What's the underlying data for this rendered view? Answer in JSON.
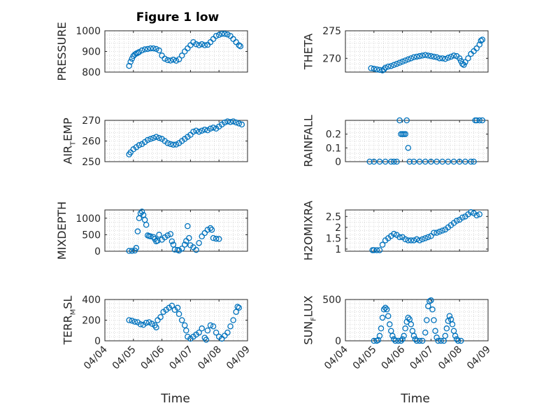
{
  "figure": {
    "title": "Figure 1 low",
    "xlabel": "Time",
    "marker_color": "#0072BD",
    "xtick_labels": [
      "04/04",
      "04/05",
      "04/06",
      "04/07",
      "04/08",
      "04/09"
    ]
  },
  "chart_data": [
    {
      "type": "scatter",
      "ylabel": "PRESSURE",
      "ylim": [
        800,
        1000
      ],
      "yticks": [
        800,
        900,
        1000
      ],
      "xlim": [
        0,
        5
      ],
      "grid": "minor-dotted",
      "points": [
        [
          0.85,
          830
        ],
        [
          0.9,
          850
        ],
        [
          0.95,
          865
        ],
        [
          1.0,
          878
        ],
        [
          1.05,
          885
        ],
        [
          1.1,
          890
        ],
        [
          1.15,
          893
        ],
        [
          1.2,
          897
        ],
        [
          1.3,
          905
        ],
        [
          1.4,
          910
        ],
        [
          1.5,
          912
        ],
        [
          1.6,
          915
        ],
        [
          1.7,
          915
        ],
        [
          1.8,
          912
        ],
        [
          1.9,
          905
        ],
        [
          2.0,
          880
        ],
        [
          2.1,
          865
        ],
        [
          2.2,
          858
        ],
        [
          2.3,
          856
        ],
        [
          2.4,
          860
        ],
        [
          2.5,
          855
        ],
        [
          2.6,
          862
        ],
        [
          2.7,
          880
        ],
        [
          2.8,
          900
        ],
        [
          2.9,
          915
        ],
        [
          3.0,
          930
        ],
        [
          3.1,
          945
        ],
        [
          3.2,
          935
        ],
        [
          3.3,
          930
        ],
        [
          3.4,
          935
        ],
        [
          3.5,
          930
        ],
        [
          3.6,
          932
        ],
        [
          3.7,
          945
        ],
        [
          3.8,
          960
        ],
        [
          3.9,
          975
        ],
        [
          4.0,
          980
        ],
        [
          4.1,
          985
        ],
        [
          4.2,
          985
        ],
        [
          4.3,
          982
        ],
        [
          4.4,
          975
        ],
        [
          4.5,
          960
        ],
        [
          4.6,
          945
        ],
        [
          4.7,
          930
        ],
        [
          4.75,
          925
        ]
      ]
    },
    {
      "type": "scatter",
      "ylabel": "THETA",
      "ylim": [
        267.5,
        275
      ],
      "yticks": [
        270,
        275
      ],
      "xlim": [
        0,
        5
      ],
      "grid": "minor-dotted",
      "points": [
        [
          0.9,
          268.2
        ],
        [
          1.0,
          268.1
        ],
        [
          1.1,
          268.0
        ],
        [
          1.2,
          267.9
        ],
        [
          1.3,
          267.8
        ],
        [
          1.35,
          268.0
        ],
        [
          1.4,
          268.3
        ],
        [
          1.5,
          268.5
        ],
        [
          1.6,
          268.6
        ],
        [
          1.7,
          268.8
        ],
        [
          1.8,
          269.0
        ],
        [
          1.9,
          269.2
        ],
        [
          2.0,
          269.4
        ],
        [
          2.1,
          269.6
        ],
        [
          2.2,
          269.8
        ],
        [
          2.3,
          270.0
        ],
        [
          2.4,
          270.2
        ],
        [
          2.5,
          270.3
        ],
        [
          2.6,
          270.4
        ],
        [
          2.7,
          270.5
        ],
        [
          2.8,
          270.6
        ],
        [
          2.9,
          270.5
        ],
        [
          3.0,
          270.4
        ],
        [
          3.1,
          270.3
        ],
        [
          3.2,
          270.2
        ],
        [
          3.3,
          270.0
        ],
        [
          3.4,
          270.0
        ],
        [
          3.5,
          269.9
        ],
        [
          3.6,
          270.1
        ],
        [
          3.7,
          270.3
        ],
        [
          3.8,
          270.5
        ],
        [
          3.9,
          270.4
        ],
        [
          4.0,
          270.0
        ],
        [
          4.05,
          269.5
        ],
        [
          4.1,
          269.0
        ],
        [
          4.15,
          268.8
        ],
        [
          4.2,
          269.3
        ],
        [
          4.3,
          270.0
        ],
        [
          4.4,
          270.8
        ],
        [
          4.5,
          271.3
        ],
        [
          4.6,
          271.8
        ],
        [
          4.7,
          272.5
        ],
        [
          4.75,
          273.2
        ],
        [
          4.8,
          273.4
        ]
      ]
    },
    {
      "type": "scatter",
      "ylabel": "AIR_TEMP",
      "ylim": [
        250,
        270
      ],
      "yticks": [
        250,
        260,
        270
      ],
      "xlim": [
        0,
        5
      ],
      "grid": "minor-dotted",
      "points": [
        [
          0.85,
          253.5
        ],
        [
          0.9,
          254.5
        ],
        [
          1.0,
          256
        ],
        [
          1.1,
          257
        ],
        [
          1.2,
          258
        ],
        [
          1.3,
          258.5
        ],
        [
          1.4,
          259.5
        ],
        [
          1.5,
          260.5
        ],
        [
          1.6,
          261
        ],
        [
          1.7,
          261.5
        ],
        [
          1.8,
          262
        ],
        [
          1.9,
          261.5
        ],
        [
          2.0,
          261
        ],
        [
          2.1,
          260
        ],
        [
          2.2,
          259
        ],
        [
          2.3,
          258.5
        ],
        [
          2.4,
          258.2
        ],
        [
          2.5,
          258.3
        ],
        [
          2.6,
          259
        ],
        [
          2.7,
          260
        ],
        [
          2.8,
          261
        ],
        [
          2.9,
          262
        ],
        [
          3.0,
          263
        ],
        [
          3.1,
          264.5
        ],
        [
          3.2,
          265
        ],
        [
          3.3,
          264.5
        ],
        [
          3.4,
          265
        ],
        [
          3.5,
          265.5
        ],
        [
          3.6,
          265.2
        ],
        [
          3.7,
          266
        ],
        [
          3.8,
          266.5
        ],
        [
          3.9,
          266
        ],
        [
          4.0,
          267
        ],
        [
          4.1,
          268
        ],
        [
          4.2,
          269
        ],
        [
          4.3,
          269.5
        ],
        [
          4.4,
          269.2
        ],
        [
          4.5,
          269.5
        ],
        [
          4.6,
          269
        ],
        [
          4.7,
          268.5
        ],
        [
          4.8,
          268
        ]
      ]
    },
    {
      "type": "scatter",
      "ylabel": "RAINFALL",
      "ylim": [
        0,
        0.3
      ],
      "yticks": [
        0,
        0.1,
        0.2
      ],
      "xlim": [
        0,
        5
      ],
      "grid": "minor-dotted",
      "points": [
        [
          0.85,
          0
        ],
        [
          1.0,
          0
        ],
        [
          1.2,
          0
        ],
        [
          1.4,
          0
        ],
        [
          1.6,
          0
        ],
        [
          1.7,
          0
        ],
        [
          1.8,
          0
        ],
        [
          1.9,
          0.3
        ],
        [
          1.95,
          0.2
        ],
        [
          2.0,
          0.2
        ],
        [
          2.05,
          0.2
        ],
        [
          2.1,
          0.2
        ],
        [
          2.15,
          0.3
        ],
        [
          2.2,
          0.1
        ],
        [
          2.25,
          0
        ],
        [
          2.4,
          0
        ],
        [
          2.6,
          0
        ],
        [
          2.8,
          0
        ],
        [
          3.0,
          0
        ],
        [
          3.2,
          0
        ],
        [
          3.4,
          0
        ],
        [
          3.6,
          0
        ],
        [
          3.8,
          0
        ],
        [
          4.0,
          0
        ],
        [
          4.2,
          0
        ],
        [
          4.4,
          0
        ],
        [
          4.5,
          0
        ],
        [
          4.55,
          0.3
        ],
        [
          4.6,
          0.3
        ],
        [
          4.7,
          0.3
        ],
        [
          4.8,
          0.3
        ]
      ]
    },
    {
      "type": "scatter",
      "ylabel": "MIXDEPTH",
      "ylim": [
        0,
        1250
      ],
      "yticks": [
        0,
        500,
        1000
      ],
      "xlim": [
        0,
        5
      ],
      "grid": "minor-dotted",
      "points": [
        [
          0.85,
          10
        ],
        [
          0.95,
          10
        ],
        [
          1.05,
          20
        ],
        [
          1.1,
          100
        ],
        [
          1.15,
          600
        ],
        [
          1.2,
          1000
        ],
        [
          1.25,
          1150
        ],
        [
          1.3,
          1200
        ],
        [
          1.35,
          1100
        ],
        [
          1.4,
          950
        ],
        [
          1.45,
          800
        ],
        [
          1.5,
          480
        ],
        [
          1.55,
          460
        ],
        [
          1.6,
          450
        ],
        [
          1.7,
          430
        ],
        [
          1.75,
          370
        ],
        [
          1.8,
          300
        ],
        [
          1.85,
          320
        ],
        [
          1.9,
          500
        ],
        [
          2.0,
          350
        ],
        [
          2.1,
          420
        ],
        [
          2.2,
          480
        ],
        [
          2.3,
          520
        ],
        [
          2.35,
          300
        ],
        [
          2.4,
          200
        ],
        [
          2.45,
          50
        ],
        [
          2.55,
          40
        ],
        [
          2.6,
          20
        ],
        [
          2.7,
          80
        ],
        [
          2.8,
          200
        ],
        [
          2.85,
          310
        ],
        [
          2.9,
          760
        ],
        [
          2.95,
          400
        ],
        [
          3.0,
          180
        ],
        [
          3.1,
          120
        ],
        [
          3.2,
          40
        ],
        [
          3.3,
          250
        ],
        [
          3.4,
          450
        ],
        [
          3.5,
          550
        ],
        [
          3.6,
          650
        ],
        [
          3.7,
          700
        ],
        [
          3.75,
          650
        ],
        [
          3.8,
          400
        ],
        [
          3.9,
          380
        ],
        [
          4.0,
          370
        ]
      ]
    },
    {
      "type": "scatter",
      "ylabel": "H2OMIXRA",
      "ylim": [
        0.9,
        2.8
      ],
      "yticks": [
        1,
        1.5,
        2,
        2.5
      ],
      "xlim": [
        0,
        5
      ],
      "grid": "minor-dotted",
      "points": [
        [
          0.95,
          0.95
        ],
        [
          1.0,
          0.95
        ],
        [
          1.1,
          0.95
        ],
        [
          1.2,
          0.95
        ],
        [
          1.3,
          1.2
        ],
        [
          1.4,
          1.4
        ],
        [
          1.5,
          1.5
        ],
        [
          1.6,
          1.6
        ],
        [
          1.7,
          1.7
        ],
        [
          1.8,
          1.65
        ],
        [
          1.9,
          1.55
        ],
        [
          2.0,
          1.55
        ],
        [
          2.1,
          1.45
        ],
        [
          2.2,
          1.4
        ],
        [
          2.3,
          1.4
        ],
        [
          2.4,
          1.4
        ],
        [
          2.5,
          1.45
        ],
        [
          2.6,
          1.4
        ],
        [
          2.7,
          1.45
        ],
        [
          2.8,
          1.5
        ],
        [
          2.9,
          1.55
        ],
        [
          3.0,
          1.6
        ],
        [
          3.1,
          1.75
        ],
        [
          3.2,
          1.75
        ],
        [
          3.3,
          1.8
        ],
        [
          3.4,
          1.85
        ],
        [
          3.5,
          1.9
        ],
        [
          3.6,
          2.0
        ],
        [
          3.7,
          2.1
        ],
        [
          3.8,
          2.2
        ],
        [
          3.9,
          2.3
        ],
        [
          4.0,
          2.35
        ],
        [
          4.1,
          2.45
        ],
        [
          4.2,
          2.5
        ],
        [
          4.3,
          2.6
        ],
        [
          4.4,
          2.7
        ],
        [
          4.5,
          2.65
        ],
        [
          4.6,
          2.55
        ],
        [
          4.7,
          2.6
        ]
      ]
    },
    {
      "type": "scatter",
      "ylabel": "TERR_MSL",
      "ylim": [
        0,
        400
      ],
      "yticks": [
        0,
        200,
        400
      ],
      "xlim": [
        0,
        5
      ],
      "grid": "minor-dotted",
      "points": [
        [
          0.85,
          200
        ],
        [
          0.95,
          195
        ],
        [
          1.05,
          185
        ],
        [
          1.15,
          180
        ],
        [
          1.25,
          160
        ],
        [
          1.35,
          155
        ],
        [
          1.45,
          175
        ],
        [
          1.55,
          180
        ],
        [
          1.65,
          165
        ],
        [
          1.75,
          150
        ],
        [
          1.8,
          130
        ],
        [
          1.85,
          200
        ],
        [
          1.95,
          230
        ],
        [
          2.05,
          280
        ],
        [
          2.15,
          300
        ],
        [
          2.25,
          320
        ],
        [
          2.35,
          340
        ],
        [
          2.45,
          300
        ],
        [
          2.55,
          320
        ],
        [
          2.6,
          260
        ],
        [
          2.7,
          200
        ],
        [
          2.8,
          150
        ],
        [
          2.85,
          100
        ],
        [
          2.9,
          40
        ],
        [
          3.0,
          20
        ],
        [
          3.1,
          40
        ],
        [
          3.2,
          60
        ],
        [
          3.3,
          80
        ],
        [
          3.4,
          120
        ],
        [
          3.5,
          30
        ],
        [
          3.55,
          10
        ],
        [
          3.6,
          100
        ],
        [
          3.7,
          150
        ],
        [
          3.8,
          140
        ],
        [
          3.9,
          80
        ],
        [
          4.0,
          40
        ],
        [
          4.1,
          20
        ],
        [
          4.2,
          50
        ],
        [
          4.3,
          80
        ],
        [
          4.4,
          140
        ],
        [
          4.5,
          200
        ],
        [
          4.6,
          280
        ],
        [
          4.65,
          330
        ],
        [
          4.7,
          320
        ]
      ]
    },
    {
      "type": "scatter",
      "ylabel": "SUN_FLUX",
      "ylim": [
        0,
        500
      ],
      "yticks": [
        0,
        500
      ],
      "xlim": [
        0,
        5
      ],
      "grid": "minor-dotted",
      "points": [
        [
          1.0,
          0
        ],
        [
          1.1,
          0
        ],
        [
          1.15,
          10
        ],
        [
          1.2,
          60
        ],
        [
          1.25,
          150
        ],
        [
          1.3,
          280
        ],
        [
          1.35,
          380
        ],
        [
          1.4,
          400
        ],
        [
          1.45,
          380
        ],
        [
          1.5,
          300
        ],
        [
          1.55,
          200
        ],
        [
          1.6,
          120
        ],
        [
          1.65,
          60
        ],
        [
          1.7,
          20
        ],
        [
          1.75,
          0
        ],
        [
          1.85,
          0
        ],
        [
          1.95,
          0
        ],
        [
          2.0,
          20
        ],
        [
          2.05,
          60
        ],
        [
          2.1,
          150
        ],
        [
          2.15,
          230
        ],
        [
          2.2,
          280
        ],
        [
          2.25,
          260
        ],
        [
          2.3,
          200
        ],
        [
          2.35,
          120
        ],
        [
          2.4,
          60
        ],
        [
          2.45,
          20
        ],
        [
          2.5,
          0
        ],
        [
          2.6,
          0
        ],
        [
          2.7,
          0
        ],
        [
          2.8,
          100
        ],
        [
          2.85,
          250
        ],
        [
          2.9,
          420
        ],
        [
          2.95,
          480
        ],
        [
          3.0,
          490
        ],
        [
          3.05,
          380
        ],
        [
          3.1,
          250
        ],
        [
          3.15,
          120
        ],
        [
          3.2,
          40
        ],
        [
          3.25,
          0
        ],
        [
          3.35,
          0
        ],
        [
          3.45,
          0
        ],
        [
          3.5,
          60
        ],
        [
          3.55,
          150
        ],
        [
          3.6,
          240
        ],
        [
          3.65,
          300
        ],
        [
          3.7,
          260
        ],
        [
          3.75,
          200
        ],
        [
          3.8,
          120
        ],
        [
          3.85,
          60
        ],
        [
          3.9,
          20
        ],
        [
          3.95,
          0
        ],
        [
          4.05,
          0
        ]
      ]
    }
  ]
}
